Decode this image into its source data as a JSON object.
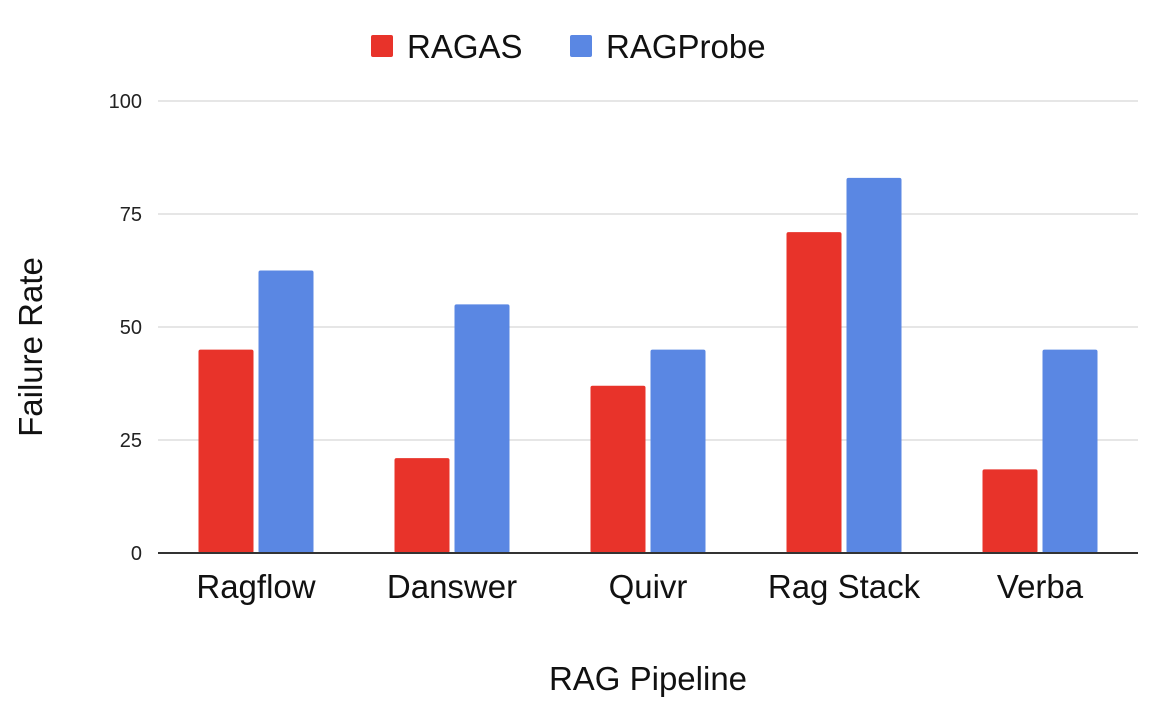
{
  "chart_data": {
    "type": "bar",
    "categories": [
      "Ragflow",
      "Danswer",
      "Quivr",
      "Rag Stack",
      "Verba"
    ],
    "series": [
      {
        "name": "RAGAS",
        "color": "#e8332a",
        "values": [
          45,
          21,
          37,
          71,
          18.5
        ]
      },
      {
        "name": "RAGProbe",
        "color": "#5a87e3",
        "values": [
          62.5,
          55,
          45,
          83,
          45
        ]
      }
    ],
    "xlabel": "RAG Pipeline",
    "ylabel": "Failure Rate",
    "ylim": [
      0,
      100
    ],
    "yticks": [
      0,
      25,
      50,
      75,
      100
    ],
    "grid": true,
    "legend_position": "top"
  }
}
